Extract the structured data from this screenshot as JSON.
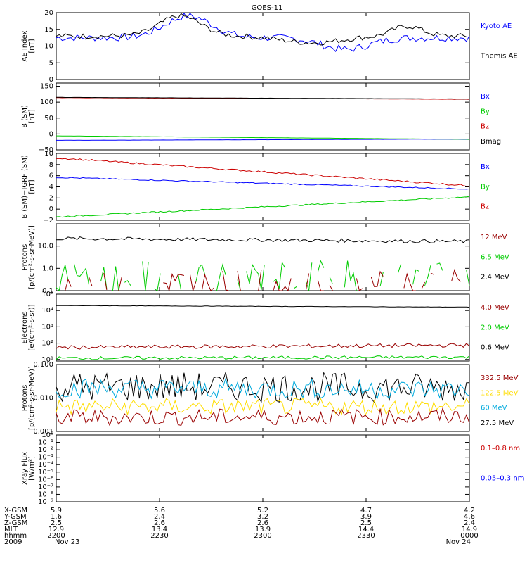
{
  "title": "GOES-11",
  "colors": {
    "black": "#000000",
    "blue": "#0000ff",
    "red": "#cc0000",
    "darkred": "#990000",
    "green": "#00cc00",
    "cyan": "#00aadd",
    "yellow": "#ffdd00"
  },
  "chart_data": [
    {
      "type": "line",
      "ylabel": [
        "AE Index",
        "[nT]"
      ],
      "ylim": [
        0,
        20
      ],
      "yscale": "linear",
      "yticks": [
        "0",
        "5",
        "10",
        "15",
        "20"
      ],
      "legend": [
        {
          "name": "Kyoto AE",
          "color": "blue"
        },
        {
          "name": "Themis AE",
          "color": "black"
        }
      ],
      "series": [
        {
          "name": "Kyoto AE",
          "color": "blue",
          "shape": "ae_kyoto",
          "base": 12.5
        },
        {
          "name": "Themis AE",
          "color": "black",
          "shape": "ae_themis",
          "base": 12.8
        }
      ]
    },
    {
      "type": "line",
      "ylabel": [
        "B (SM)",
        "[nT]"
      ],
      "ylim": [
        -50,
        160
      ],
      "yscale": "linear",
      "yticks": [
        "−50",
        "0",
        "50",
        "100",
        "150"
      ],
      "legend": [
        {
          "name": "Bx",
          "color": "blue"
        },
        {
          "name": "By",
          "color": "green"
        },
        {
          "name": "Bz",
          "color": "red"
        },
        {
          "name": "Bmag",
          "color": "black"
        }
      ],
      "series": [
        {
          "name": "Bz",
          "color": "red",
          "start": 114,
          "end": 109,
          "noise": 0.4
        },
        {
          "name": "Bmag",
          "color": "black",
          "start": 115,
          "end": 110,
          "noise": 0.2
        },
        {
          "name": "By",
          "color": "green",
          "start": -6,
          "end": -17,
          "noise": 0.2
        },
        {
          "name": "Bx",
          "color": "blue",
          "start": -20,
          "end": -16,
          "noise": 0.2
        }
      ]
    },
    {
      "type": "line",
      "ylabel": [
        "B (SM)−IGRF (SM)",
        "[nT]"
      ],
      "ylim": [
        -2,
        10
      ],
      "yscale": "linear",
      "yticks": [
        "−2",
        "0",
        "2",
        "4",
        "6",
        "8",
        "10"
      ],
      "legend": [
        {
          "name": "Bx",
          "color": "blue"
        },
        {
          "name": "By",
          "color": "green"
        },
        {
          "name": "Bz",
          "color": "red"
        }
      ],
      "series": [
        {
          "name": "Bz",
          "color": "red",
          "start": 9.2,
          "end": 4.2,
          "noise": 0.15
        },
        {
          "name": "Bx",
          "color": "blue",
          "start": 5.7,
          "end": 3.6,
          "noise": 0.1
        },
        {
          "name": "By",
          "color": "green",
          "start": -1.4,
          "end": 2.2,
          "noise": 0.12
        }
      ]
    },
    {
      "type": "line",
      "ylabel": [
        "Protons",
        "[p/(cm²-s-sr-MeV)]"
      ],
      "ylim": [
        0.1,
        100
      ],
      "yscale": "log",
      "yticks": [
        "0.1",
        "1.0",
        "10.0"
      ],
      "legend": [
        {
          "name": "12 MeV",
          "color": "darkred"
        },
        {
          "name": "6.5 MeV",
          "color": "green"
        },
        {
          "name": "2.4 MeV",
          "color": "black"
        }
      ],
      "series": [
        {
          "name": "2.4 MeV",
          "color": "black",
          "start": 22,
          "end": 16,
          "noise": 0.08,
          "log": true
        },
        {
          "name": "6.5 MeV",
          "color": "green",
          "sparse": true,
          "level": 0.2,
          "noise": 0.25,
          "log": true
        },
        {
          "name": "12 MeV",
          "color": "darkred",
          "sparse": true,
          "level": 0.13,
          "noise": 0.2,
          "log": true
        }
      ]
    },
    {
      "type": "line",
      "ylabel": [
        "Electrons",
        "[e/(cm²-s-sr)]"
      ],
      "ylim": [
        8,
        100000
      ],
      "yscale": "log",
      "yticks": [
        "10¹",
        "10²",
        "10³",
        "10⁴",
        "10⁵"
      ],
      "legend": [
        {
          "name": "4.0 MeV",
          "color": "darkred"
        },
        {
          "name": "2.0 MeV",
          "color": "green"
        },
        {
          "name": "0.6 MeV",
          "color": "black"
        }
      ],
      "series": [
        {
          "name": "0.6 MeV",
          "color": "black",
          "start": 20000,
          "end": 16000,
          "noise": 0.01,
          "log": true
        },
        {
          "name": "4.0 MeV",
          "color": "darkred",
          "start": 55,
          "end": 75,
          "noise": 0.12,
          "log": true
        },
        {
          "name": "2.0 MeV",
          "color": "green",
          "start": 12,
          "end": 14,
          "noise": 0.1,
          "log": true
        }
      ]
    },
    {
      "type": "line",
      "ylabel": [
        "Protons",
        "[p/(cm²-s-sr-MeV)]"
      ],
      "ylim": [
        0.001,
        0.1
      ],
      "yscale": "log",
      "yticks": [
        "0.001",
        "0.010",
        "0.100"
      ],
      "legend": [
        {
          "name": "332.5 MeV",
          "color": "darkred"
        },
        {
          "name": "122.5 MeV",
          "color": "yellow"
        },
        {
          "name": "60 MeV",
          "color": "cyan"
        },
        {
          "name": "27.5 MeV",
          "color": "black"
        }
      ],
      "series": [
        {
          "name": "27.5 MeV",
          "color": "black",
          "start": 0.022,
          "end": 0.02,
          "noise": 0.45,
          "log": true
        },
        {
          "name": "60 MeV",
          "color": "cyan",
          "start": 0.02,
          "end": 0.018,
          "noise": 0.3,
          "log": true
        },
        {
          "name": "122.5 MeV",
          "color": "yellow",
          "start": 0.0055,
          "end": 0.0055,
          "noise": 0.25,
          "log": true
        },
        {
          "name": "332.5 MeV",
          "color": "darkred",
          "start": 0.0026,
          "end": 0.0028,
          "noise": 0.25,
          "log": true
        }
      ]
    },
    {
      "type": "line",
      "ylabel": [
        "Xray Flux",
        "[W/m²]"
      ],
      "ylim": [
        1e-09,
        1
      ],
      "yscale": "log",
      "yticks": [
        "10⁻⁹",
        "10⁻⁸",
        "10⁻⁷",
        "10⁻⁶",
        "10⁻⁵",
        "10⁻⁴",
        "10⁻³",
        "10⁻²",
        "10⁻¹",
        "10⁰"
      ],
      "legend": [
        {
          "name": "0.1–0.8 nm",
          "color": "red"
        },
        {
          "name": "0.05–0.3 nm",
          "color": "blue"
        }
      ],
      "series": []
    }
  ],
  "x_axis": {
    "row_labels": [
      "X-GSM",
      "Y-GSM",
      "Z-GSM",
      "MLT",
      "hhmm",
      "2009"
    ],
    "columns": [
      [
        "5.9",
        "1.6",
        "2.5",
        "12.9",
        "2200",
        "Nov 23"
      ],
      [
        "5.6",
        "2.4",
        "2.6",
        "13.4",
        "2230",
        ""
      ],
      [
        "5.2",
        "3.2",
        "2.6",
        "13.9",
        "2300",
        ""
      ],
      [
        "4.7",
        "3.9",
        "2.5",
        "14.4",
        "2330",
        ""
      ],
      [
        "4.2",
        "4.6",
        "2.4",
        "14.9",
        "0000",
        "Nov 24"
      ]
    ]
  }
}
